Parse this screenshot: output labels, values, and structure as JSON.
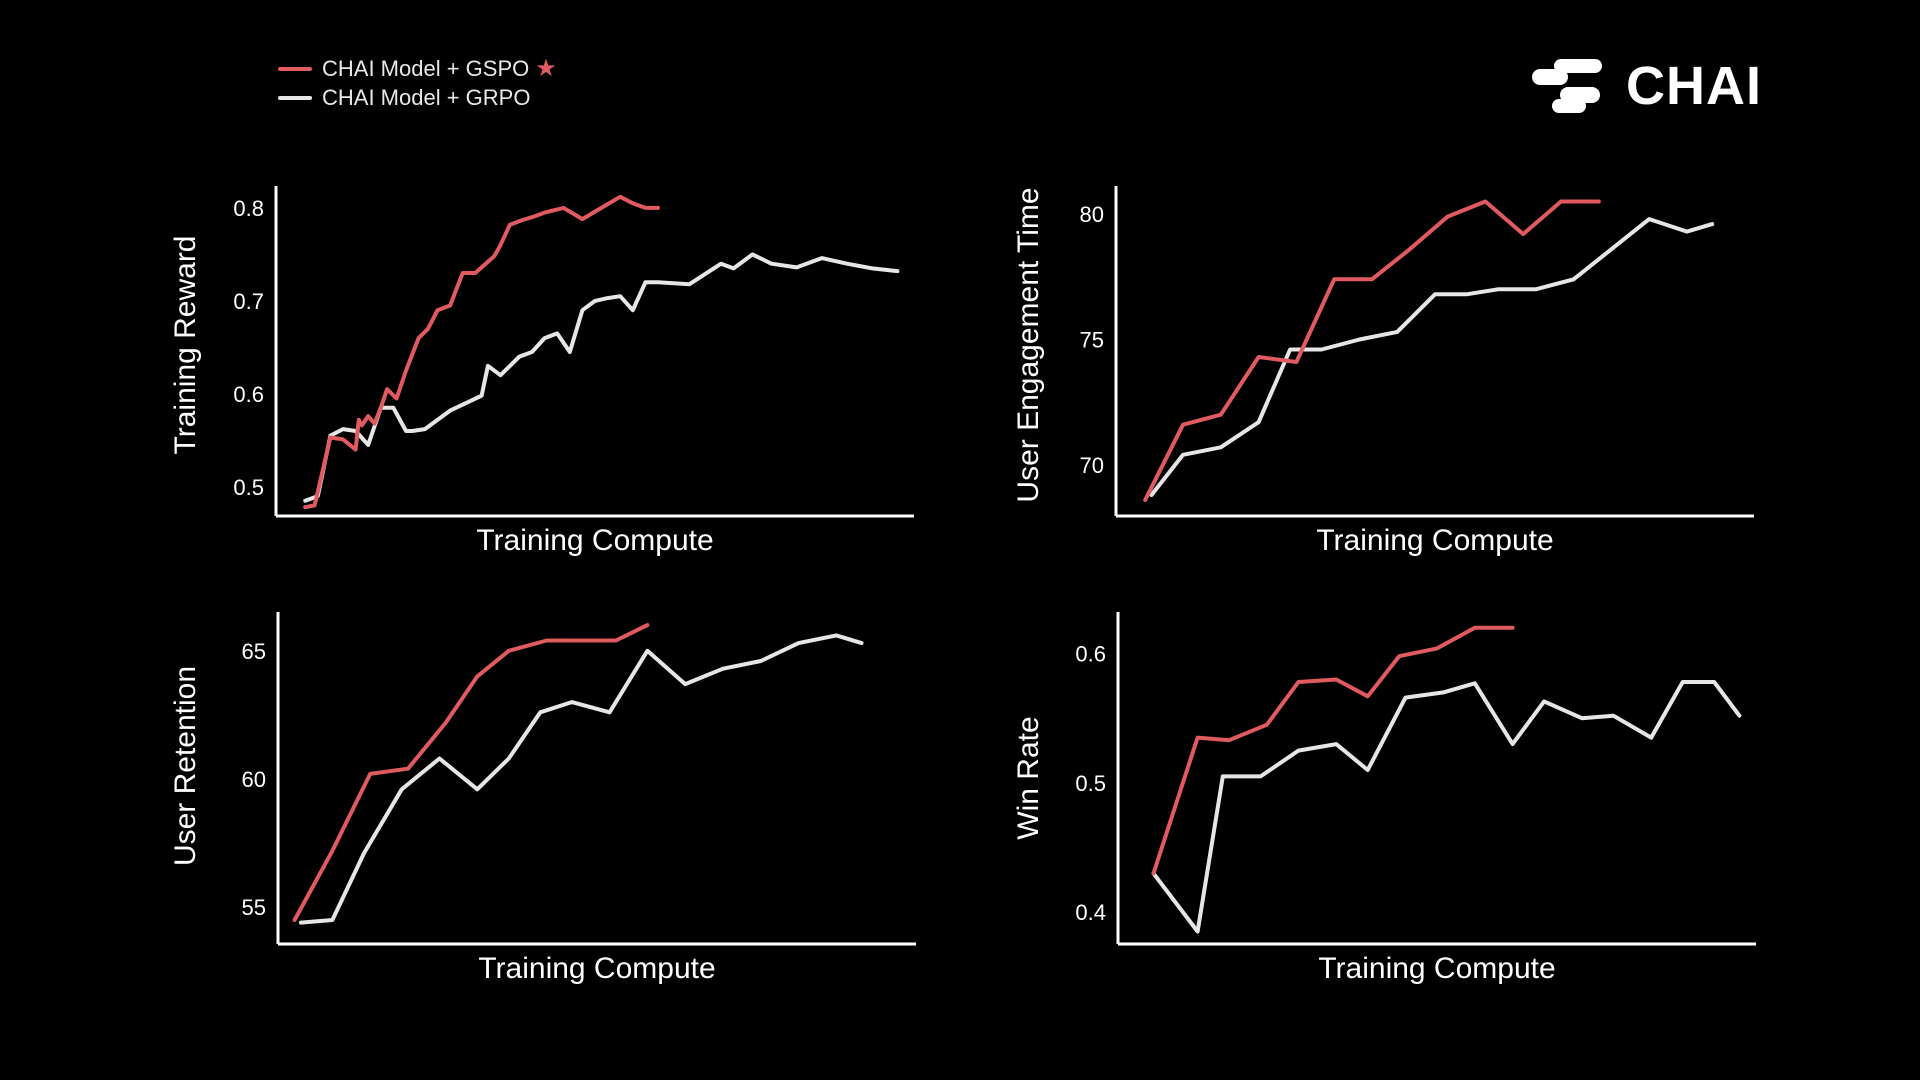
{
  "legend": {
    "gspo_label": "CHAI Model + GSPO",
    "grpo_label": "CHAI Model + GRPO",
    "star": "★"
  },
  "brand": {
    "name": "CHAI"
  },
  "colors": {
    "gspo": "#e05a5f",
    "grpo": "#e6e6e6",
    "axis": "#ffffff",
    "background": "#000000"
  },
  "chart_data": [
    {
      "type": "line",
      "xlabel": "Training Compute",
      "ylabel": "Training Reward",
      "yticks": [
        0.5,
        0.6,
        0.7,
        0.8
      ],
      "ylim": [
        0.475,
        0.815
      ],
      "xlim": [
        0,
        100
      ],
      "series": [
        {
          "name": "CHAI Model + GSPO",
          "x": [
            4,
            5.5,
            8,
            10,
            12,
            12.5,
            13,
            14,
            15,
            16,
            17,
            18.5,
            20,
            22,
            23.5,
            25,
            27,
            29,
            31,
            33,
            34,
            35,
            36.5,
            38.5,
            40,
            42,
            45,
            48,
            51,
            54,
            56,
            58,
            60
          ],
          "values": [
            0.478,
            0.48,
            0.553,
            0.551,
            0.54,
            0.572,
            0.566,
            0.576,
            0.568,
            0.585,
            0.605,
            0.595,
            0.625,
            0.66,
            0.67,
            0.69,
            0.695,
            0.73,
            0.73,
            0.742,
            0.748,
            0.76,
            0.782,
            0.787,
            0.79,
            0.795,
            0.8,
            0.788,
            0.8,
            0.812,
            0.805,
            0.8,
            0.8
          ]
        },
        {
          "name": "CHAI Model + GRPO",
          "x": [
            4,
            6,
            8,
            10,
            12,
            14,
            16,
            18,
            20,
            21,
            23,
            27,
            32,
            33,
            35,
            38,
            40,
            42,
            44,
            46,
            48,
            50,
            52,
            54,
            56,
            58,
            60,
            65,
            70,
            72,
            75,
            78,
            82,
            86,
            90,
            94,
            98
          ],
          "values": [
            0.485,
            0.49,
            0.555,
            0.562,
            0.56,
            0.545,
            0.585,
            0.585,
            0.56,
            0.56,
            0.562,
            0.582,
            0.598,
            0.63,
            0.62,
            0.64,
            0.645,
            0.66,
            0.665,
            0.645,
            0.69,
            0.7,
            0.703,
            0.705,
            0.69,
            0.72,
            0.72,
            0.718,
            0.74,
            0.735,
            0.75,
            0.74,
            0.736,
            0.746,
            0.74,
            0.735,
            0.732
          ]
        }
      ]
    },
    {
      "type": "line",
      "xlabel": "Training Compute",
      "ylabel": "User Engagement Time",
      "yticks": [
        70,
        75,
        80
      ],
      "ylim": [
        68.2,
        80.8
      ],
      "xlim": [
        0,
        100
      ],
      "series": [
        {
          "name": "CHAI Model + GSPO",
          "x": [
            4,
            10,
            16,
            22,
            28,
            34,
            40,
            46,
            52,
            58,
            64,
            70,
            76
          ],
          "values": [
            68.6,
            71.6,
            72.0,
            74.3,
            74.1,
            77.4,
            77.4,
            78.6,
            79.9,
            80.5,
            79.2,
            80.5,
            80.5
          ]
        },
        {
          "name": "CHAI Model + GRPO",
          "x": [
            5,
            10,
            16,
            22,
            27,
            32,
            38,
            44,
            50,
            55,
            60,
            66,
            72,
            78,
            84,
            90,
            94
          ],
          "values": [
            68.8,
            70.4,
            70.7,
            71.7,
            74.6,
            74.6,
            75.0,
            75.3,
            76.8,
            76.8,
            77.0,
            77.0,
            77.4,
            78.6,
            79.8,
            79.3,
            79.6
          ]
        }
      ]
    },
    {
      "type": "line",
      "xlabel": "Training Compute",
      "ylabel": "User Retention",
      "yticks": [
        55,
        60,
        65
      ],
      "ylim": [
        53.8,
        66.2
      ],
      "xlim": [
        0,
        100
      ],
      "series": [
        {
          "name": "CHAI Model + GSPO",
          "x": [
            2,
            8,
            14,
            20,
            26,
            31,
            36,
            42,
            47,
            53,
            58
          ],
          "values": [
            54.5,
            57.2,
            60.2,
            60.4,
            62.2,
            64.0,
            65.0,
            65.4,
            65.4,
            65.4,
            66.0
          ]
        },
        {
          "name": "CHAI Model + GRPO",
          "x": [
            3,
            8,
            13,
            19,
            25,
            31,
            36,
            41,
            46,
            52,
            58,
            64,
            70,
            76,
            82,
            88,
            92
          ],
          "values": [
            54.4,
            54.5,
            57.1,
            59.6,
            60.8,
            59.6,
            60.8,
            62.6,
            63.0,
            62.6,
            65.0,
            63.7,
            64.3,
            64.6,
            65.3,
            65.6,
            65.3
          ]
        }
      ]
    },
    {
      "type": "line",
      "xlabel": "Training Compute",
      "ylabel": "Win Rate",
      "yticks": [
        0.4,
        0.5,
        0.6
      ],
      "ylim": [
        0.38,
        0.626
      ],
      "xlim": [
        0,
        100
      ],
      "series": [
        {
          "name": "CHAI Model + GSPO",
          "x": [
            5,
            12,
            17,
            23,
            28,
            34,
            39,
            44,
            50,
            56,
            62
          ],
          "values": [
            0.43,
            0.535,
            0.533,
            0.545,
            0.578,
            0.58,
            0.567,
            0.598,
            0.604,
            0.62,
            0.62
          ]
        },
        {
          "name": "CHAI Model + GRPO",
          "x": [
            5,
            12,
            16,
            22,
            28,
            34,
            39,
            45,
            51,
            56,
            62,
            67,
            73,
            78,
            84,
            89,
            94,
            98
          ],
          "values": [
            0.43,
            0.385,
            0.505,
            0.505,
            0.525,
            0.53,
            0.51,
            0.566,
            0.57,
            0.577,
            0.53,
            0.563,
            0.55,
            0.552,
            0.535,
            0.578,
            0.578,
            0.552
          ]
        }
      ]
    }
  ]
}
